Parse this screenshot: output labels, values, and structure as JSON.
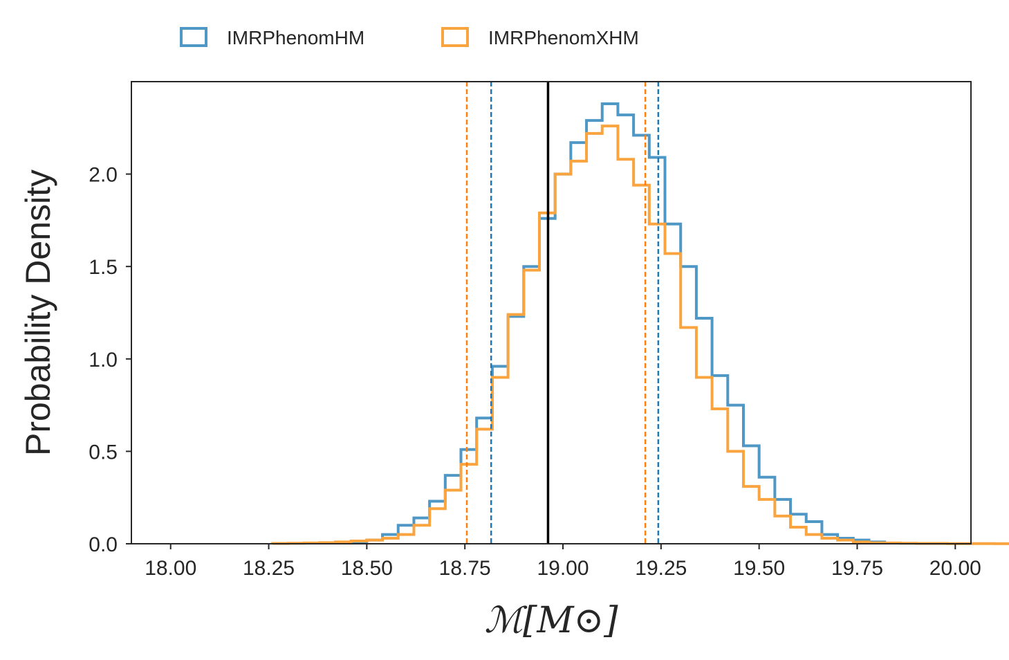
{
  "chart_data": {
    "type": "histogram",
    "title": "",
    "xlabel": "ℳ[M⊙]",
    "ylabel": "Probability Density",
    "xlim": [
      17.9,
      20.04
    ],
    "ylim": [
      0,
      2.5
    ],
    "xticks": [
      "18.00",
      "18.25",
      "18.50",
      "18.75",
      "19.00",
      "19.25",
      "19.50",
      "19.75",
      "20.00"
    ],
    "yticks": [
      "0.0",
      "0.5",
      "1.0",
      "1.5",
      "2.0"
    ],
    "grid": false,
    "legend_position": "top-center-outside",
    "true_value": 18.962,
    "series": [
      {
        "name": "IMRPhenomHM",
        "color": "#4f97c5",
        "interval_color": "#1f77b4",
        "interval": [
          18.817,
          19.243
        ],
        "bins_start": 18.46,
        "bin_width": 0.04,
        "values": [
          0.01,
          0.02,
          0.05,
          0.1,
          0.14,
          0.23,
          0.37,
          0.51,
          0.68,
          0.96,
          1.23,
          1.5,
          1.76,
          2.0,
          2.17,
          2.29,
          2.38,
          2.32,
          2.21,
          2.09,
          1.73,
          1.5,
          1.22,
          0.91,
          0.75,
          0.53,
          0.36,
          0.24,
          0.16,
          0.12,
          0.05,
          0.03,
          0.02,
          0.01
        ]
      },
      {
        "name": "IMRPhenomXHM",
        "color": "#f9a43f",
        "interval_color": "#ff7f0e",
        "interval": [
          18.755,
          19.21
        ],
        "bins_start": 18.26,
        "bin_width": 0.04,
        "values": [
          0.002,
          0.003,
          0.004,
          0.006,
          0.01,
          0.015,
          0.02,
          0.03,
          0.05,
          0.1,
          0.19,
          0.29,
          0.43,
          0.62,
          0.9,
          1.24,
          1.48,
          1.79,
          2.0,
          2.07,
          2.22,
          2.26,
          2.08,
          1.94,
          1.73,
          1.57,
          1.17,
          0.9,
          0.73,
          0.5,
          0.31,
          0.24,
          0.15,
          0.09,
          0.05,
          0.03,
          0.02,
          0.01,
          0.005,
          0.004,
          0.003,
          0.002,
          0.002,
          0.001,
          0.001,
          0.001,
          0.0005,
          0.0003
        ]
      }
    ]
  }
}
